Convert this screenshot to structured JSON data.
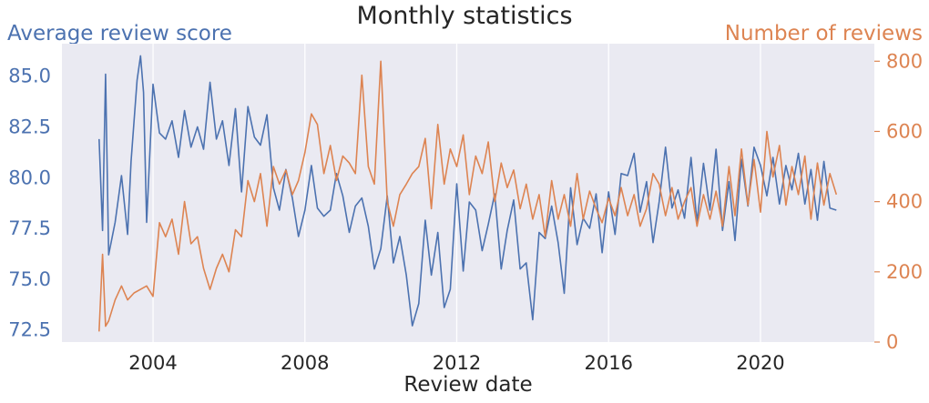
{
  "chart_data": {
    "type": "line",
    "title": "Monthly statistics",
    "xlabel": "Review date",
    "ylabel_left": "Average review score",
    "ylabel_right": "Number of reviews",
    "xlim": [
      2001.6,
      2023.0
    ],
    "ylim_left": [
      71.9,
      86.6
    ],
    "ylim_right": [
      0,
      850
    ],
    "x_ticks": [
      2004,
      2008,
      2012,
      2016,
      2020
    ],
    "y_ticks_left": [
      "72.5",
      "75.0",
      "77.5",
      "80.0",
      "82.5",
      "85.0"
    ],
    "y_ticks_right": [
      "0",
      "200",
      "400",
      "600",
      "800"
    ],
    "grid": true,
    "colors": {
      "left": "#4c72b0",
      "right": "#dd8452",
      "plot_bg": "#eaeaf2",
      "grid": "#ffffff"
    },
    "series": [
      {
        "name": "Average review score",
        "axis": "left",
        "x": [
          2002.58,
          2002.67,
          2002.75,
          2002.83,
          2003.0,
          2003.17,
          2003.33,
          2003.42,
          2003.58,
          2003.67,
          2003.75,
          2003.83,
          2004.0,
          2004.17,
          2004.33,
          2004.5,
          2004.67,
          2004.83,
          2005.0,
          2005.17,
          2005.33,
          2005.5,
          2005.67,
          2005.83,
          2006.0,
          2006.17,
          2006.33,
          2006.5,
          2006.67,
          2006.83,
          2007.0,
          2007.17,
          2007.33,
          2007.5,
          2007.67,
          2007.83,
          2008.0,
          2008.17,
          2008.33,
          2008.5,
          2008.67,
          2008.83,
          2009.0,
          2009.17,
          2009.33,
          2009.5,
          2009.67,
          2009.83,
          2010.0,
          2010.17,
          2010.33,
          2010.5,
          2010.67,
          2010.83,
          2011.0,
          2011.17,
          2011.33,
          2011.5,
          2011.67,
          2011.83,
          2012.0,
          2012.17,
          2012.33,
          2012.5,
          2012.67,
          2012.83,
          2013.0,
          2013.17,
          2013.33,
          2013.5,
          2013.67,
          2013.83,
          2014.0,
          2014.17,
          2014.33,
          2014.5,
          2014.67,
          2014.83,
          2015.0,
          2015.17,
          2015.33,
          2015.5,
          2015.67,
          2015.83,
          2016.0,
          2016.17,
          2016.33,
          2016.5,
          2016.67,
          2016.83,
          2017.0,
          2017.17,
          2017.33,
          2017.5,
          2017.67,
          2017.83,
          2018.0,
          2018.17,
          2018.33,
          2018.5,
          2018.67,
          2018.83,
          2019.0,
          2019.17,
          2019.33,
          2019.5,
          2019.67,
          2019.83,
          2020.0,
          2020.17,
          2020.33,
          2020.5,
          2020.67,
          2020.83,
          2021.0,
          2021.17,
          2021.33,
          2021.5,
          2021.67,
          2021.83,
          2022.0
        ],
        "y": [
          81.9,
          77.4,
          85.1,
          76.2,
          77.8,
          80.1,
          77.2,
          80.8,
          84.8,
          86.0,
          84.2,
          77.8,
          84.6,
          82.2,
          81.9,
          82.8,
          81.0,
          83.3,
          81.5,
          82.5,
          81.4,
          84.7,
          81.9,
          82.8,
          80.6,
          83.4,
          79.3,
          83.5,
          82.0,
          81.6,
          83.1,
          79.5,
          78.4,
          80.4,
          79.0,
          77.1,
          78.4,
          80.6,
          78.5,
          78.1,
          78.4,
          80.2,
          79.1,
          77.3,
          78.6,
          79.0,
          77.6,
          75.5,
          76.5,
          79.1,
          75.8,
          77.1,
          75.2,
          72.7,
          73.8,
          77.9,
          75.2,
          77.3,
          73.6,
          74.5,
          79.7,
          75.4,
          78.8,
          78.4,
          76.4,
          77.7,
          79.2,
          75.5,
          77.4,
          78.9,
          75.5,
          75.8,
          73.0,
          77.3,
          77.0,
          78.6,
          76.8,
          74.3,
          79.5,
          76.7,
          78.0,
          77.5,
          79.2,
          76.3,
          79.3,
          77.2,
          80.2,
          80.1,
          81.2,
          78.3,
          79.8,
          76.8,
          78.8,
          81.5,
          78.5,
          79.4,
          78.0,
          81.0,
          77.8,
          80.7,
          78.4,
          81.4,
          77.4,
          79.8,
          76.9,
          80.9,
          78.6,
          81.5,
          80.6,
          79.1,
          81.0,
          78.7,
          80.6,
          79.4,
          81.2,
          78.7,
          80.4,
          77.9,
          80.8,
          78.5,
          78.4
        ]
      },
      {
        "name": "Number of reviews",
        "axis": "right",
        "x": [
          2002.58,
          2002.67,
          2002.75,
          2002.83,
          2003.0,
          2003.17,
          2003.33,
          2003.5,
          2003.67,
          2003.83,
          2004.0,
          2004.17,
          2004.33,
          2004.5,
          2004.67,
          2004.83,
          2005.0,
          2005.17,
          2005.33,
          2005.5,
          2005.67,
          2005.83,
          2006.0,
          2006.17,
          2006.33,
          2006.5,
          2006.67,
          2006.83,
          2007.0,
          2007.17,
          2007.33,
          2007.5,
          2007.67,
          2007.83,
          2008.0,
          2008.17,
          2008.33,
          2008.5,
          2008.67,
          2008.83,
          2009.0,
          2009.17,
          2009.33,
          2009.5,
          2009.67,
          2009.83,
          2010.0,
          2010.17,
          2010.33,
          2010.5,
          2010.67,
          2010.83,
          2011.0,
          2011.17,
          2011.33,
          2011.5,
          2011.67,
          2011.83,
          2012.0,
          2012.17,
          2012.33,
          2012.5,
          2012.67,
          2012.83,
          2013.0,
          2013.17,
          2013.33,
          2013.5,
          2013.67,
          2013.83,
          2014.0,
          2014.17,
          2014.33,
          2014.5,
          2014.67,
          2014.83,
          2015.0,
          2015.17,
          2015.33,
          2015.5,
          2015.67,
          2015.83,
          2016.0,
          2016.17,
          2016.33,
          2016.5,
          2016.67,
          2016.83,
          2017.0,
          2017.17,
          2017.33,
          2017.5,
          2017.67,
          2017.83,
          2018.0,
          2018.17,
          2018.33,
          2018.5,
          2018.67,
          2018.83,
          2019.0,
          2019.17,
          2019.33,
          2019.5,
          2019.67,
          2019.83,
          2020.0,
          2020.17,
          2020.33,
          2020.5,
          2020.67,
          2020.83,
          2021.0,
          2021.17,
          2021.33,
          2021.5,
          2021.67,
          2021.83,
          2022.0
        ],
        "y": [
          30,
          250,
          45,
          60,
          120,
          160,
          120,
          140,
          150,
          160,
          130,
          340,
          300,
          350,
          250,
          400,
          280,
          300,
          210,
          150,
          210,
          250,
          200,
          320,
          300,
          460,
          400,
          480,
          330,
          500,
          450,
          490,
          420,
          460,
          540,
          650,
          620,
          480,
          560,
          460,
          530,
          510,
          480,
          760,
          500,
          450,
          800,
          400,
          330,
          420,
          450,
          480,
          500,
          580,
          380,
          620,
          450,
          550,
          500,
          590,
          420,
          530,
          480,
          570,
          400,
          510,
          440,
          490,
          380,
          450,
          350,
          420,
          300,
          460,
          350,
          420,
          330,
          480,
          350,
          430,
          380,
          340,
          410,
          360,
          440,
          360,
          420,
          330,
          380,
          480,
          450,
          360,
          440,
          350,
          400,
          440,
          330,
          420,
          350,
          430,
          330,
          500,
          360,
          550,
          390,
          520,
          370,
          600,
          470,
          560,
          390,
          500,
          420,
          530,
          350,
          510,
          390,
          480,
          420
        ]
      }
    ]
  }
}
